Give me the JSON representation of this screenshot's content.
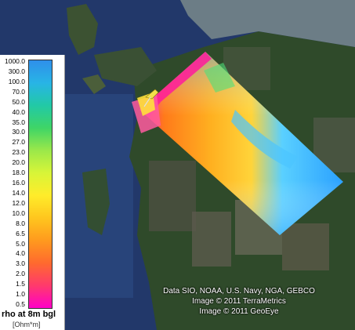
{
  "legend": {
    "title": "rho at 8m bgl",
    "unit": "[Ohm*m]",
    "ticks": [
      "1000.0",
      "300.0",
      "100.0",
      "70.0",
      "50.0",
      "40.0",
      "35.0",
      "30.0",
      "27.0",
      "23.0",
      "20.0",
      "18.0",
      "16.0",
      "14.0",
      "12.0",
      "10.0",
      "8.0",
      "6.5",
      "5.0",
      "4.0",
      "3.0",
      "2.0",
      "1.5",
      "1.0",
      "0.5"
    ],
    "colors": [
      "#ff00c8",
      "#ff3a6c",
      "#ff6a2e",
      "#ff9a1e",
      "#ffc61e",
      "#ffec2a",
      "#d8f538",
      "#9be84a",
      "#3fd566",
      "#22c9a6",
      "#28b4e6",
      "#2f8fea"
    ]
  },
  "attribution": {
    "line1": "Data SIO, NOAA, U.S. Navy, NGA, GEBCO",
    "line2": "Image © 2011 TerraMetrics",
    "line3": "Image © 2011 GeoEye"
  }
}
